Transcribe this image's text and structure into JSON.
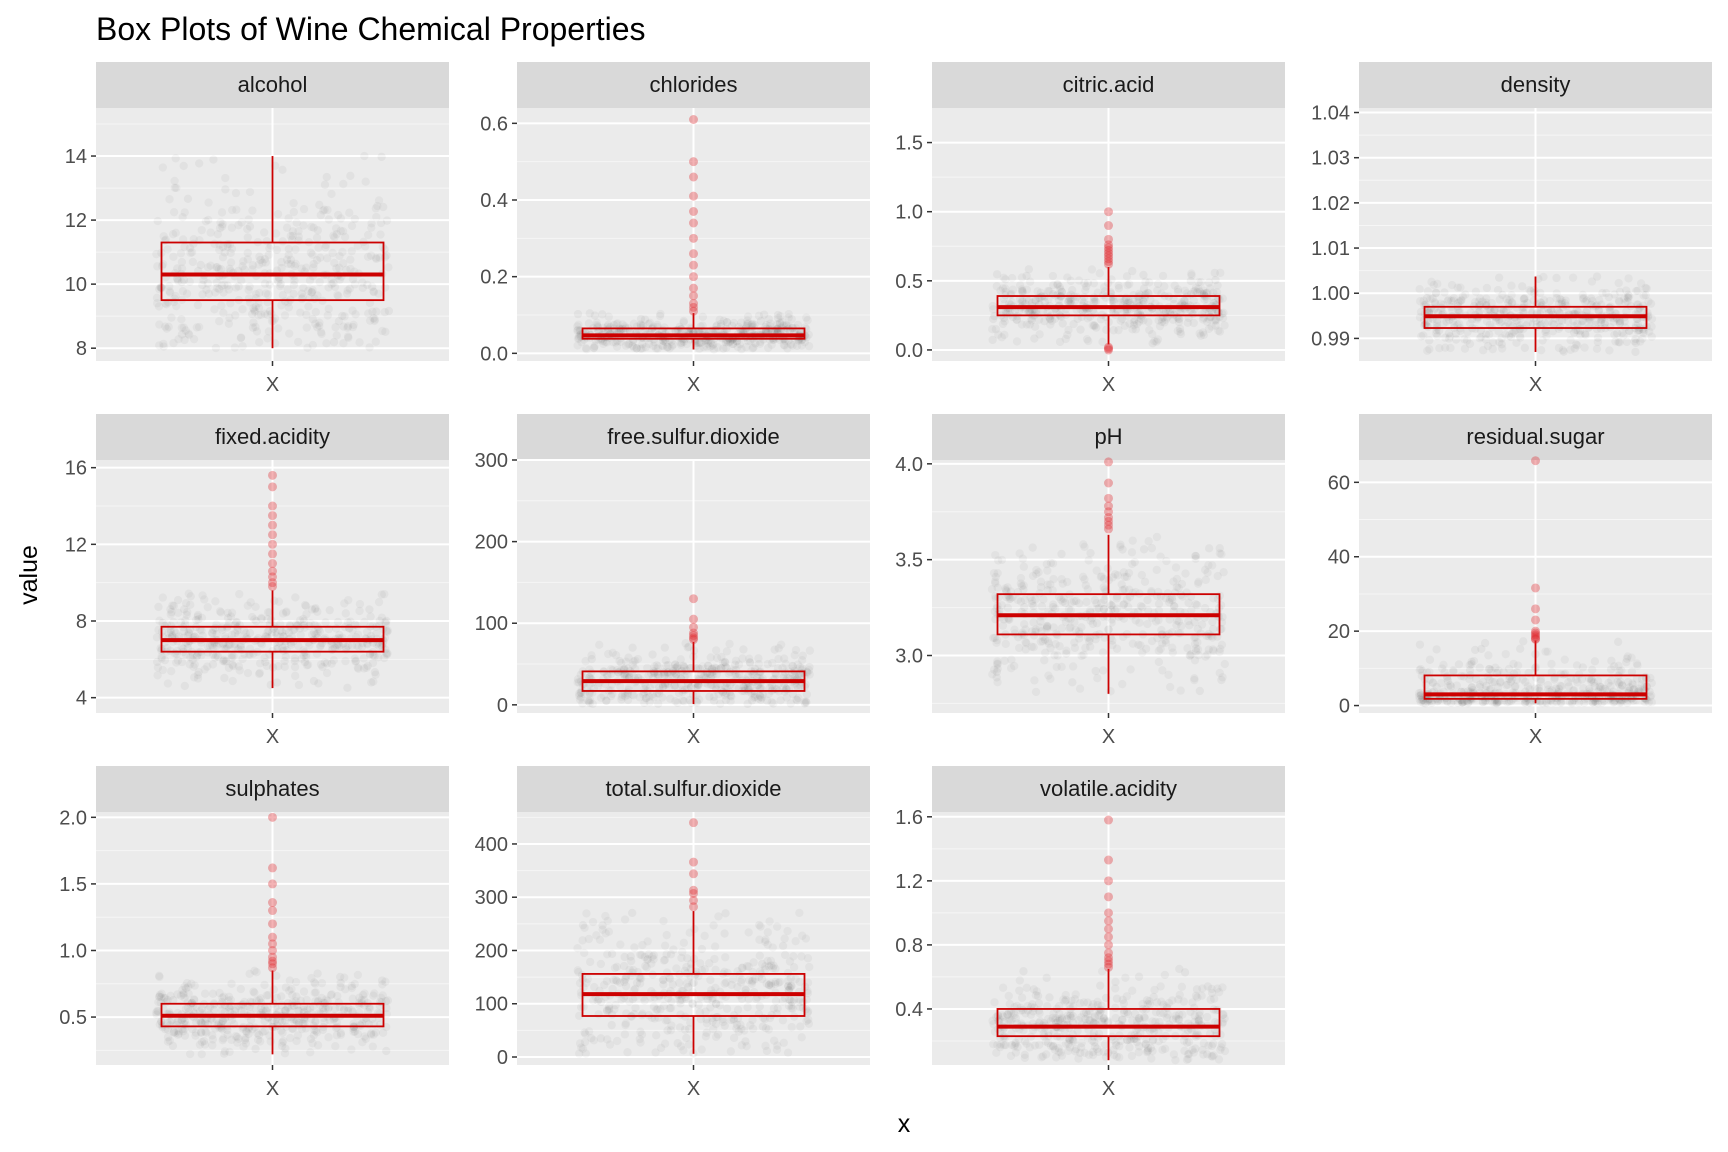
{
  "chart_data": {
    "type": "boxplot",
    "title": "Box Plots of Wine Chemical Properties",
    "xlabel": "x",
    "ylabel": "value",
    "grid": true,
    "colors": {
      "panel_bg": "#ebebeb",
      "strip_bg": "#d9d9d9",
      "grid": "#ffffff",
      "box": "#cc0000",
      "points": "#000000",
      "outliers": "#e0262b"
    },
    "panels": [
      {
        "name": "alcohol",
        "category": "X",
        "ylim": [
          7.6,
          15.5
        ],
        "yticks": [
          8,
          10,
          12,
          14
        ],
        "tick_labels": [
          "8",
          "10",
          "12",
          "14"
        ],
        "min": 8.0,
        "q1": 9.5,
        "median": 10.3,
        "q3": 11.3,
        "max": 14.0,
        "outliers": []
      },
      {
        "name": "chlorides",
        "category": "X",
        "ylim": [
          -0.02,
          0.64
        ],
        "yticks": [
          0.0,
          0.2,
          0.4,
          0.6
        ],
        "tick_labels": [
          "0.0",
          "0.2",
          "0.4",
          "0.6"
        ],
        "min": 0.01,
        "q1": 0.038,
        "median": 0.047,
        "q3": 0.065,
        "max": 0.105,
        "outliers": [
          0.11,
          0.12,
          0.13,
          0.15,
          0.17,
          0.2,
          0.23,
          0.26,
          0.3,
          0.34,
          0.37,
          0.41,
          0.46,
          0.5,
          0.61
        ]
      },
      {
        "name": "citric.acid",
        "category": "X",
        "ylim": [
          -0.08,
          1.75
        ],
        "yticks": [
          0.0,
          0.5,
          1.0,
          1.5
        ],
        "tick_labels": [
          "0.0",
          "0.5",
          "1.0",
          "1.5"
        ],
        "min": 0.04,
        "q1": 0.25,
        "median": 0.31,
        "q3": 0.39,
        "max": 0.6,
        "outliers": [
          0.0,
          0.01,
          0.02,
          0.62,
          0.64,
          0.66,
          0.68,
          0.7,
          0.72,
          0.74,
          0.76,
          0.8,
          0.9,
          1.0
        ]
      },
      {
        "name": "density",
        "category": "X",
        "ylim": [
          0.985,
          1.041
        ],
        "yticks": [
          0.99,
          1.0,
          1.01,
          1.02,
          1.03,
          1.04
        ],
        "tick_labels": [
          "0.99",
          "1.00",
          "1.01",
          "1.02",
          "1.03",
          "1.04"
        ],
        "min": 0.987,
        "q1": 0.9923,
        "median": 0.9949,
        "q3": 0.997,
        "max": 1.0037,
        "outliers": []
      },
      {
        "name": "fixed.acidity",
        "category": "X",
        "ylim": [
          3.2,
          16.4
        ],
        "yticks": [
          4,
          8,
          12,
          16
        ],
        "tick_labels": [
          "4",
          "8",
          "12",
          "16"
        ],
        "min": 4.5,
        "q1": 6.4,
        "median": 7.0,
        "q3": 7.7,
        "max": 9.6,
        "outliers": [
          9.8,
          10.0,
          10.3,
          10.6,
          11.0,
          11.5,
          12.0,
          12.5,
          13.0,
          13.5,
          14.0,
          15.0,
          15.6
        ]
      },
      {
        "name": "free.sulfur.dioxide",
        "category": "X",
        "ylim": [
          -10,
          300
        ],
        "yticks": [
          0,
          100,
          200,
          300
        ],
        "tick_labels": [
          "0",
          "100",
          "200",
          "300"
        ],
        "min": 1,
        "q1": 17,
        "median": 29,
        "q3": 41,
        "max": 77,
        "outliers": [
          80,
          82,
          85,
          88,
          95,
          105,
          130
        ]
      },
      {
        "name": "pH",
        "category": "X",
        "ylim": [
          2.7,
          4.02
        ],
        "yticks": [
          3.0,
          3.5,
          4.0
        ],
        "tick_labels": [
          "3.0",
          "3.5",
          "4.0"
        ],
        "min": 2.8,
        "q1": 3.11,
        "median": 3.21,
        "q3": 3.32,
        "max": 3.63,
        "outliers": [
          3.66,
          3.68,
          3.7,
          3.72,
          3.75,
          3.78,
          3.82,
          3.9,
          4.01
        ]
      },
      {
        "name": "residual.sugar",
        "category": "X",
        "ylim": [
          -2,
          66
        ],
        "yticks": [
          0,
          20,
          40,
          60
        ],
        "tick_labels": [
          "0",
          "20",
          "40",
          "60"
        ],
        "min": 0.6,
        "q1": 1.8,
        "median": 3.0,
        "q3": 8.1,
        "max": 17.5,
        "outliers": [
          17.8,
          18.0,
          18.5,
          19.0,
          19.5,
          20.0,
          23.0,
          26.0,
          31.6,
          65.8
        ]
      },
      {
        "name": "sulphates",
        "category": "X",
        "ylim": [
          0.14,
          2.04
        ],
        "yticks": [
          0.5,
          1.0,
          1.5,
          2.0
        ],
        "tick_labels": [
          "0.5",
          "1.0",
          "1.5",
          "2.0"
        ],
        "min": 0.22,
        "q1": 0.43,
        "median": 0.51,
        "q3": 0.6,
        "max": 0.85,
        "outliers": [
          0.87,
          0.9,
          0.92,
          0.95,
          1.0,
          1.05,
          1.1,
          1.2,
          1.3,
          1.36,
          1.5,
          1.62,
          2.0
        ]
      },
      {
        "name": "total.sulfur.dioxide",
        "category": "X",
        "ylim": [
          -15,
          460
        ],
        "yticks": [
          0,
          100,
          200,
          300,
          400
        ],
        "tick_labels": [
          "0",
          "100",
          "200",
          "300",
          "400"
        ],
        "min": 6,
        "q1": 77,
        "median": 118,
        "q3": 156,
        "max": 274,
        "outliers": [
          282,
          294,
          307,
          313,
          344,
          366,
          440
        ]
      },
      {
        "name": "volatile.acidity",
        "category": "X",
        "ylim": [
          0.05,
          1.63
        ],
        "yticks": [
          0.4,
          0.8,
          1.2,
          1.6
        ],
        "tick_labels": [
          "0.4",
          "0.8",
          "1.2",
          "1.6"
        ],
        "min": 0.08,
        "q1": 0.23,
        "median": 0.29,
        "q3": 0.4,
        "max": 0.65,
        "outliers": [
          0.66,
          0.68,
          0.7,
          0.72,
          0.75,
          0.8,
          0.85,
          0.9,
          0.95,
          1.0,
          1.1,
          1.2,
          1.33,
          1.58
        ]
      }
    ]
  }
}
